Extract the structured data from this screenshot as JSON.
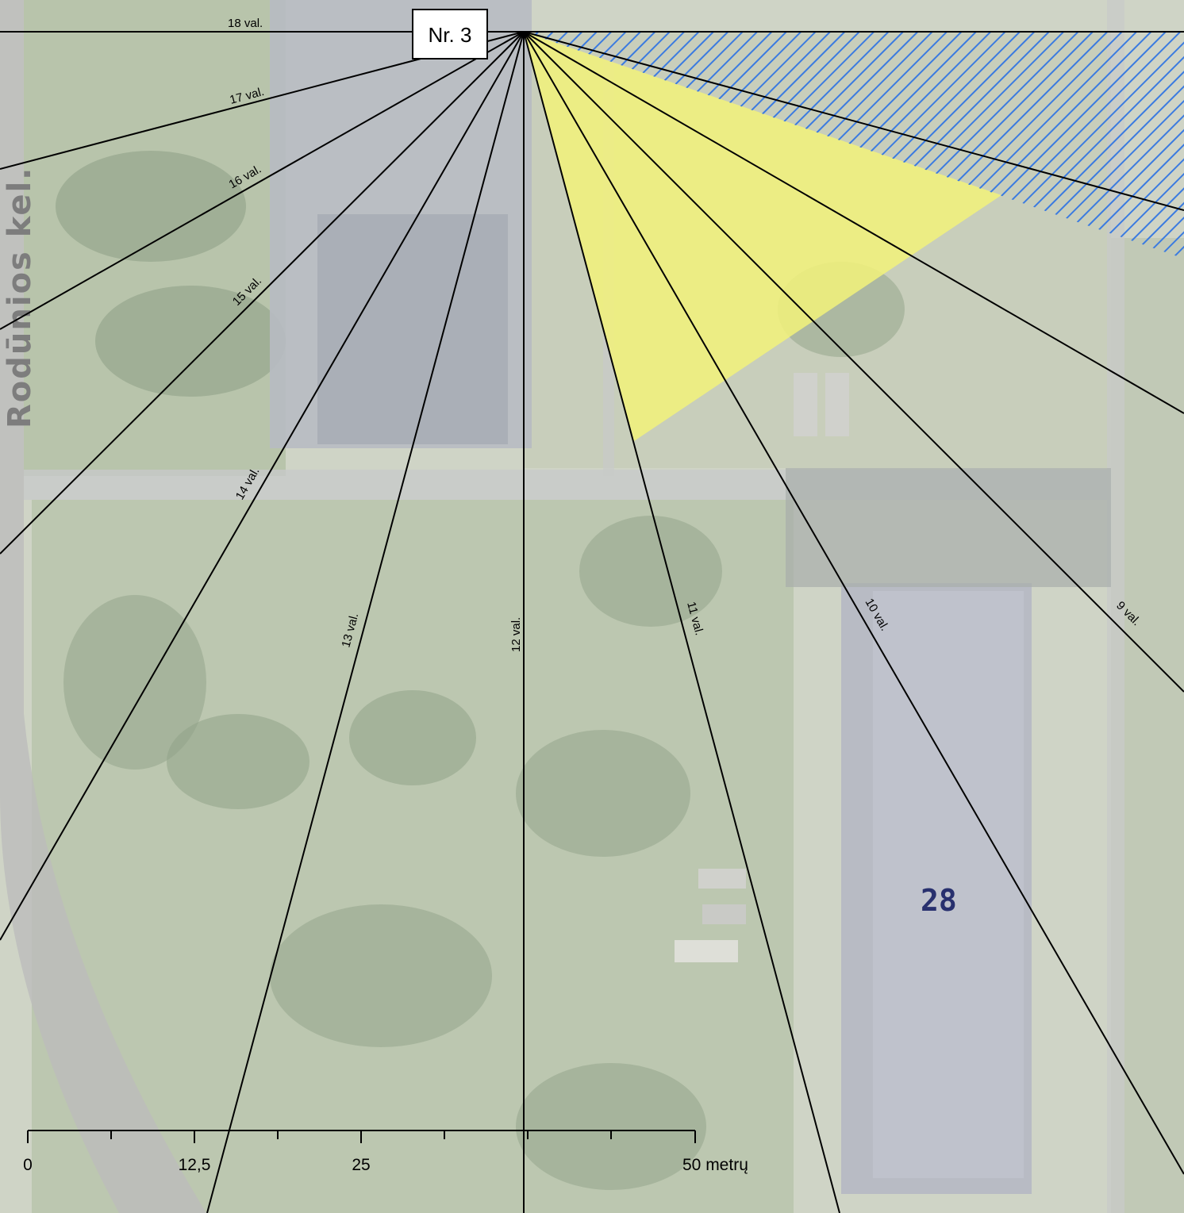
{
  "point_label": "Nr. 3",
  "street_label": "Rodūnios kel.",
  "building_number": "28",
  "hour_lines": [
    {
      "label": "18 val.",
      "hour": 18
    },
    {
      "label": "17 val.",
      "hour": 17
    },
    {
      "label": "16 val.",
      "hour": 16
    },
    {
      "label": "15 val.",
      "hour": 15
    },
    {
      "label": "14 val.",
      "hour": 14
    },
    {
      "label": "13 val.",
      "hour": 13
    },
    {
      "label": "12 val.",
      "hour": 12
    },
    {
      "label": "11 val.",
      "hour": 11
    },
    {
      "label": "10 val.",
      "hour": 10
    },
    {
      "label": "9 val.",
      "hour": 9
    }
  ],
  "scale_bar": {
    "labels": [
      "0",
      "12,5",
      "25",
      "50 metrų"
    ]
  },
  "colors": {
    "sun_sector": "#f2f27a",
    "shadow_hatch": "#3b7be0",
    "lines": "#000000",
    "buildings": "#b6b9c4",
    "building_label": "#28306e"
  }
}
